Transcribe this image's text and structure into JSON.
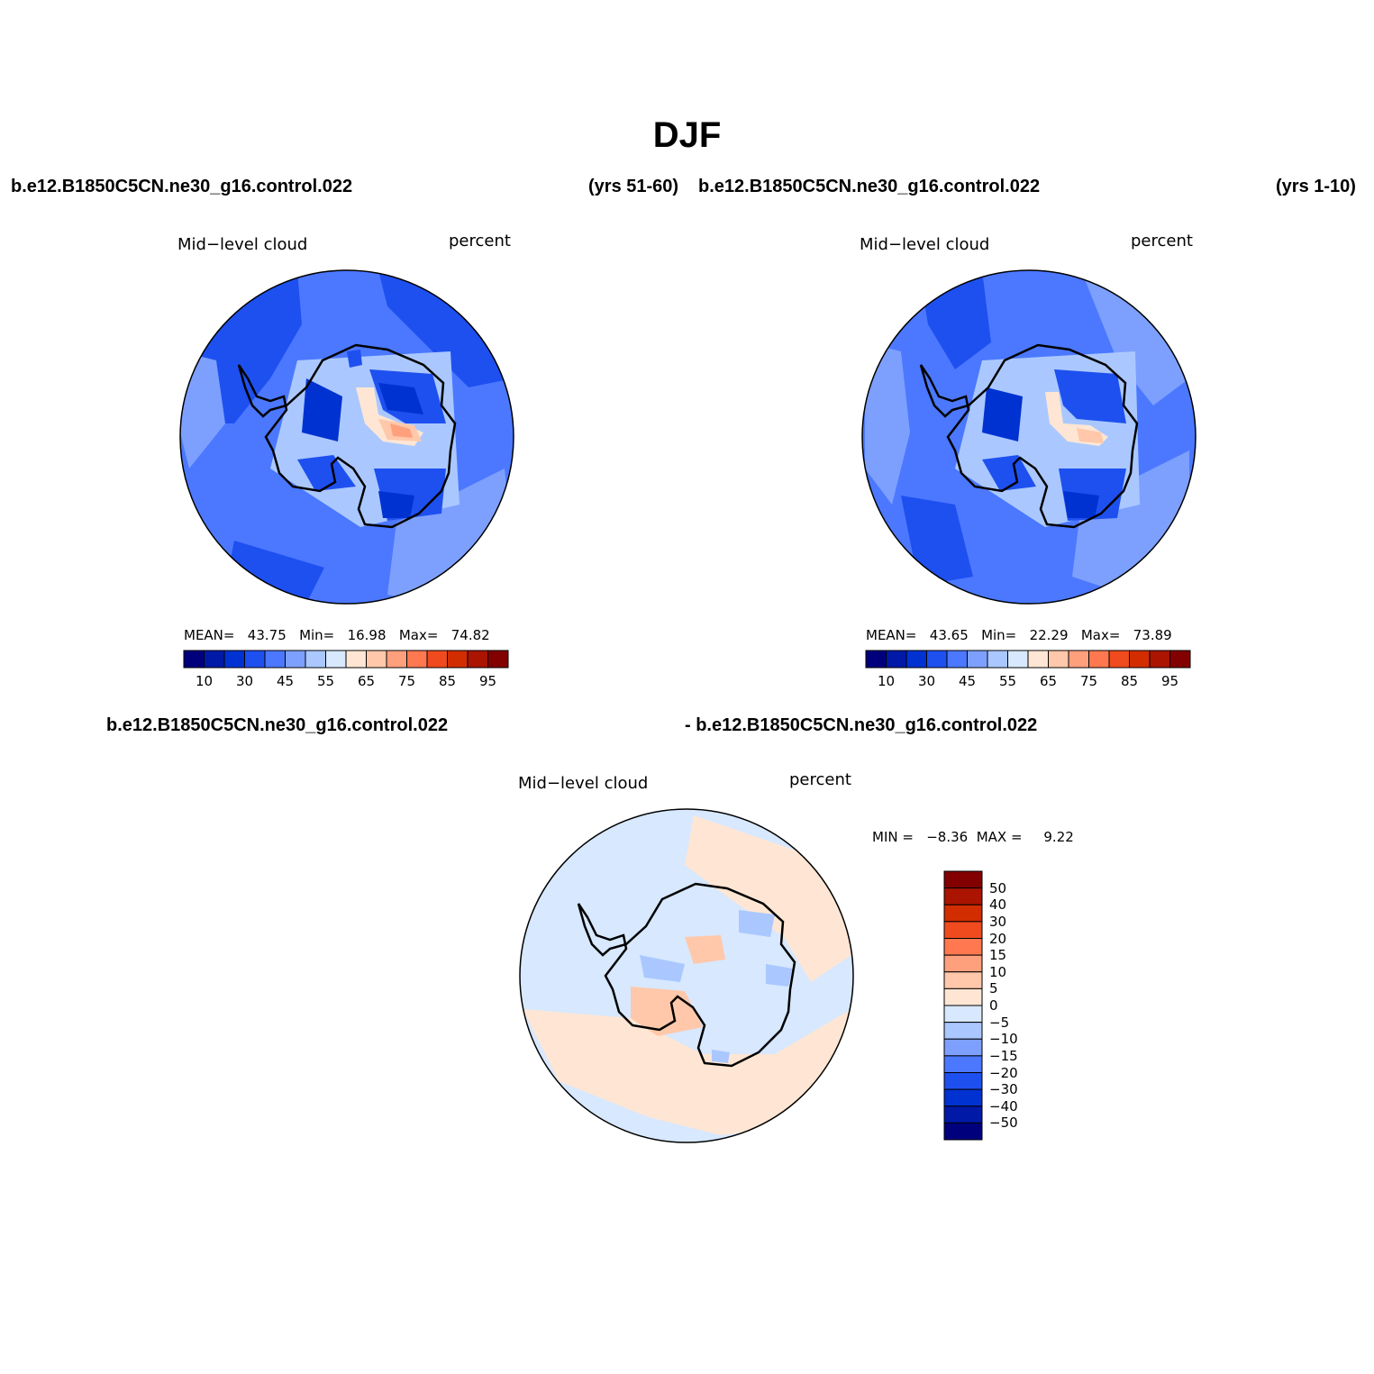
{
  "page_title": "DJF",
  "panels": {
    "case_top_left": "b.e12.B1850C5CN.ne30_g16.control.022",
    "years_top_left": "(yrs 51-60)",
    "case_top_right": "b.e12.B1850C5CN.ne30_g16.control.022",
    "years_top_right": "(yrs 1-10)",
    "case_diff_left": "b.e12.B1850C5CN.ne30_g16.control.022",
    "case_diff_right": "- b.e12.B1850C5CN.ne30_g16.control.022"
  },
  "map_left": {
    "variable": "Mid−level cloud",
    "units": "percent",
    "mean_label": "MEAN=",
    "mean": "43.75",
    "min_label": "Min=",
    "min": "16.98",
    "max_label": "Max=",
    "max": "74.82"
  },
  "map_right": {
    "variable": "Mid−level cloud",
    "units": "percent",
    "mean_label": "MEAN=",
    "mean": "43.65",
    "min_label": "Min=",
    "min": "22.29",
    "max_label": "Max=",
    "max": "73.89"
  },
  "map_diff": {
    "variable": "Mid−level cloud",
    "units": "percent",
    "minmax_text": "MIN =   −8.36  MAX =     9.22"
  },
  "colorbar_abs": {
    "colors": [
      "#00007d",
      "#0019a6",
      "#0032d2",
      "#1e50f0",
      "#4b78ff",
      "#7da0ff",
      "#aac8ff",
      "#d7e8ff",
      "#ffe6d4",
      "#ffc8aa",
      "#ffa07d",
      "#ff7850",
      "#f04b1e",
      "#d22d00",
      "#aa1400",
      "#820000"
    ],
    "tick_labels": [
      "10",
      "30",
      "45",
      "55",
      "65",
      "75",
      "85",
      "95"
    ]
  },
  "colorbar_diff": {
    "colors": [
      "#00007d",
      "#0019a6",
      "#0032d2",
      "#1e50f0",
      "#4b78ff",
      "#7da0ff",
      "#aac8ff",
      "#d7e8ff",
      "#ffe6d4",
      "#ffc8aa",
      "#ffa07d",
      "#ff7850",
      "#f04b1e",
      "#d22d00",
      "#aa1400",
      "#820000"
    ],
    "tick_labels": [
      "50",
      "40",
      "30",
      "20",
      "15",
      "10",
      "5",
      "0",
      "−5",
      "−10",
      "−15",
      "−20",
      "−30",
      "−40",
      "−50"
    ]
  }
}
